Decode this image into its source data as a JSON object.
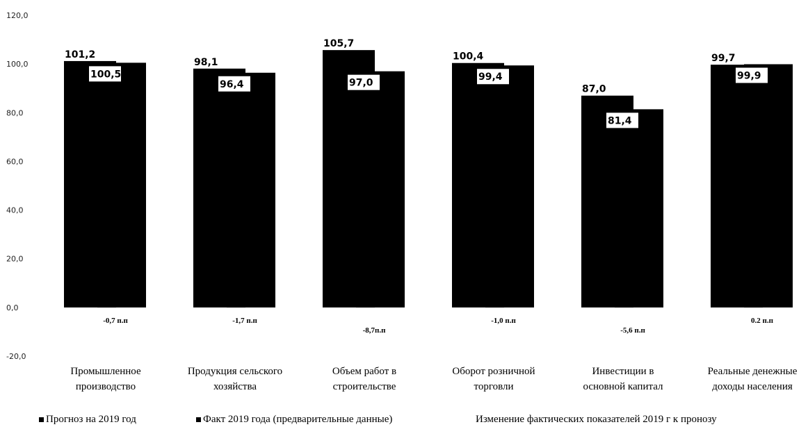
{
  "chart_data": {
    "type": "bar",
    "categories": [
      [
        "Промышленное",
        "производство"
      ],
      [
        "Продукция сельского",
        "хозяйства"
      ],
      [
        "Объем работ в",
        "строительстве"
      ],
      [
        "Оборот розничной",
        "торговли"
      ],
      [
        "Инвестиции в",
        "основной капитал"
      ],
      [
        "Реальные денежные",
        "доходы населения"
      ]
    ],
    "series": [
      {
        "name": "Прогноз на 2019 год",
        "values": [
          101.2,
          98.1,
          105.7,
          100.4,
          87.0,
          99.7
        ],
        "labels": [
          "101,2",
          "98,1",
          "105,7",
          "100,4",
          "87,0",
          "99,7"
        ],
        "color": "#000000"
      },
      {
        "name": "Факт 2019 года (предварительные данные)",
        "values": [
          100.5,
          96.4,
          97.0,
          99.4,
          81.4,
          99.9
        ],
        "labels": [
          "100,5",
          "96,4",
          "97,0",
          "99,4",
          "81,4",
          "99,9"
        ],
        "color": "#000000"
      }
    ],
    "changes": {
      "name": "Изменение фактических показателей 2019 г к пронозу",
      "labels": [
        "-0,7 п.п",
        "-1,7 п.п",
        "-8,7п.п",
        "-1,0 п.п",
        "-5,6 п.п",
        "0.2 п.п"
      ],
      "values": [
        -0.7,
        -1.7,
        -8.7,
        -1.0,
        -5.6,
        0.2
      ]
    },
    "ylim": [
      -20,
      120
    ],
    "yticks": [
      -20,
      0,
      20,
      40,
      60,
      80,
      100,
      120
    ],
    "ytick_labels": [
      "-20,0",
      "0,0",
      "20,0",
      "40,0",
      "60,0",
      "80,0",
      "100,0",
      "120,0"
    ],
    "grid": false,
    "legend_position": "bottom"
  }
}
